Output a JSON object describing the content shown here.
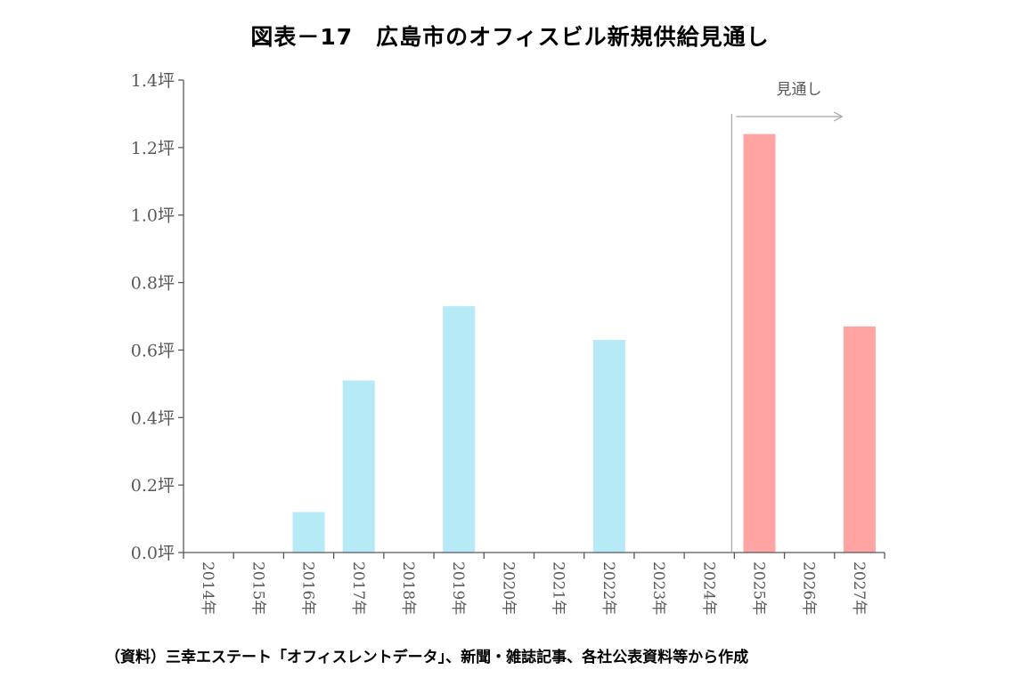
{
  "chart_data": {
    "type": "bar",
    "title": "図表－17　広島市のオフィスビル新規供給見通し",
    "categories": [
      "2014年",
      "2015年",
      "2016年",
      "2017年",
      "2018年",
      "2019年",
      "2020年",
      "2021年",
      "2022年",
      "2023年",
      "2024年",
      "2025年",
      "2026年",
      "2027年"
    ],
    "values": [
      0,
      0,
      0.12,
      0.51,
      0,
      0.73,
      0,
      0,
      0.63,
      0,
      0,
      1.24,
      0,
      0.67
    ],
    "forecast": [
      false,
      false,
      false,
      false,
      false,
      false,
      false,
      false,
      false,
      false,
      false,
      true,
      true,
      true
    ],
    "ylim": [
      0,
      1.4
    ],
    "ytick_values": [
      0,
      0.2,
      0.4,
      0.6,
      0.8,
      1.0,
      1.2,
      1.4
    ],
    "ytick_labels": [
      "0.0坪",
      "0.2坪",
      "0.4坪",
      "0.6坪",
      "0.8坪",
      "1.0坪",
      "1.2坪",
      "1.4坪"
    ],
    "xlabel": "",
    "ylabel": "",
    "grid": false,
    "annotation": "見通し",
    "colors": {
      "actual": "#b7eaf7",
      "forecast": "#ffa3a3",
      "axis": "#595959",
      "divider": "#a6a6a6"
    }
  },
  "source_note": "（資料）三幸エステート「オフィスレントデータ」、新聞・雑誌記事、各社公表資料等から作成"
}
